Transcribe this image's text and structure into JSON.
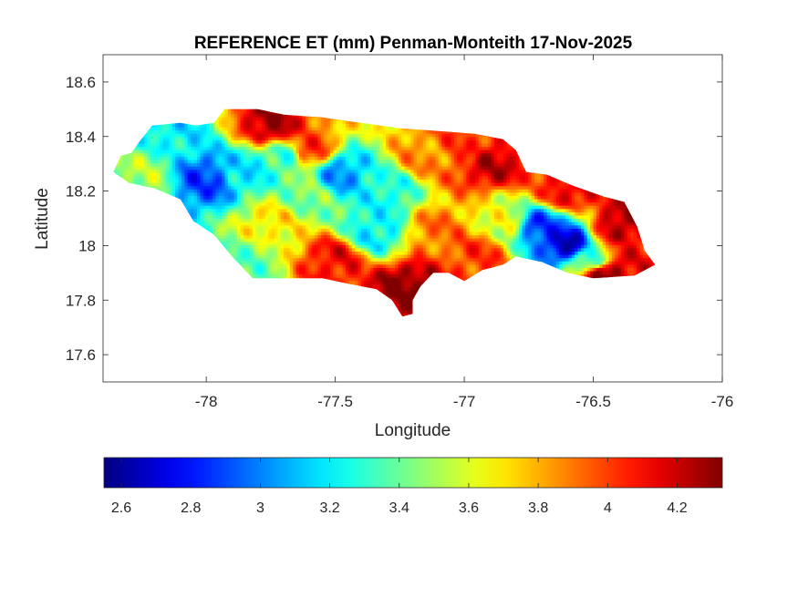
{
  "chart_data": {
    "type": "heatmap",
    "title": "REFERENCE ET (mm) Penman-Monteith 17-Nov-2025",
    "xlabel": "Longitude",
    "ylabel": "Latitude",
    "xlim": [
      -78.4,
      -76
    ],
    "ylim": [
      17.5,
      18.7
    ],
    "xticks": [
      -78,
      -77.5,
      -77,
      -76.5,
      -76
    ],
    "yticks": [
      17.6,
      17.8,
      18,
      18.2,
      18.4,
      18.6
    ],
    "grid": false,
    "colormap": "jet",
    "colorbar": {
      "orientation": "horizontal",
      "placement": "below",
      "clim": [
        2.55,
        4.33
      ],
      "ticks": [
        2.6,
        2.8,
        3,
        3.2,
        3.4,
        3.6,
        3.8,
        4,
        4.2
      ]
    },
    "outline": [
      [
        -78.36,
        18.27
      ],
      [
        -78.33,
        18.33
      ],
      [
        -78.29,
        18.34
      ],
      [
        -78.26,
        18.38
      ],
      [
        -78.21,
        18.44
      ],
      [
        -78.1,
        18.45
      ],
      [
        -78.04,
        18.44
      ],
      [
        -77.97,
        18.45
      ],
      [
        -77.93,
        18.5
      ],
      [
        -77.8,
        18.5
      ],
      [
        -77.7,
        18.48
      ],
      [
        -77.55,
        18.47
      ],
      [
        -77.4,
        18.45
      ],
      [
        -77.25,
        18.43
      ],
      [
        -77.1,
        18.42
      ],
      [
        -76.96,
        18.41
      ],
      [
        -76.85,
        18.39
      ],
      [
        -76.8,
        18.35
      ],
      [
        -76.76,
        18.27
      ],
      [
        -76.68,
        18.26
      ],
      [
        -76.58,
        18.22
      ],
      [
        -76.46,
        18.18
      ],
      [
        -76.38,
        18.16
      ],
      [
        -76.33,
        18.07
      ],
      [
        -76.3,
        17.98
      ],
      [
        -76.26,
        17.93
      ],
      [
        -76.34,
        17.89
      ],
      [
        -76.5,
        17.88
      ],
      [
        -76.6,
        17.9
      ],
      [
        -76.7,
        17.94
      ],
      [
        -76.8,
        17.96
      ],
      [
        -76.85,
        17.93
      ],
      [
        -76.93,
        17.91
      ],
      [
        -77.0,
        17.87
      ],
      [
        -77.06,
        17.9
      ],
      [
        -77.12,
        17.9
      ],
      [
        -77.17,
        17.85
      ],
      [
        -77.2,
        17.8
      ],
      [
        -77.2,
        17.75
      ],
      [
        -77.24,
        17.74
      ],
      [
        -77.28,
        17.8
      ],
      [
        -77.34,
        17.84
      ],
      [
        -77.45,
        17.86
      ],
      [
        -77.55,
        17.88
      ],
      [
        -77.7,
        17.88
      ],
      [
        -77.82,
        17.88
      ],
      [
        -77.9,
        17.96
      ],
      [
        -77.97,
        18.04
      ],
      [
        -78.05,
        18.09
      ],
      [
        -78.1,
        18.17
      ],
      [
        -78.2,
        18.21
      ],
      [
        -78.3,
        18.23
      ]
    ],
    "anchors": [
      {
        "lon": -78.25,
        "lat": 18.27,
        "value": 3.5
      },
      {
        "lon": -78.12,
        "lat": 18.4,
        "value": 3.2
      },
      {
        "lon": -78.0,
        "lat": 18.25,
        "value": 2.9
      },
      {
        "lon": -77.85,
        "lat": 18.28,
        "value": 3.2
      },
      {
        "lon": -77.75,
        "lat": 18.44,
        "value": 4.25
      },
      {
        "lon": -77.6,
        "lat": 18.35,
        "value": 4.0
      },
      {
        "lon": -77.48,
        "lat": 18.27,
        "value": 3.05
      },
      {
        "lon": -77.3,
        "lat": 18.2,
        "value": 3.25
      },
      {
        "lon": -77.15,
        "lat": 18.33,
        "value": 3.85
      },
      {
        "lon": -77.0,
        "lat": 18.35,
        "value": 4.0
      },
      {
        "lon": -76.9,
        "lat": 18.3,
        "value": 4.2
      },
      {
        "lon": -77.62,
        "lat": 18.18,
        "value": 3.45
      },
      {
        "lon": -77.75,
        "lat": 18.08,
        "value": 3.7
      },
      {
        "lon": -77.85,
        "lat": 17.95,
        "value": 3.4
      },
      {
        "lon": -77.5,
        "lat": 17.95,
        "value": 4.1
      },
      {
        "lon": -77.35,
        "lat": 18.05,
        "value": 3.2
      },
      {
        "lon": -77.22,
        "lat": 17.85,
        "value": 4.3
      },
      {
        "lon": -77.1,
        "lat": 18.05,
        "value": 3.9
      },
      {
        "lon": -76.95,
        "lat": 17.96,
        "value": 4.0
      },
      {
        "lon": -76.85,
        "lat": 18.1,
        "value": 3.6
      },
      {
        "lon": -76.7,
        "lat": 18.07,
        "value": 2.9
      },
      {
        "lon": -76.6,
        "lat": 18.01,
        "value": 2.7
      },
      {
        "lon": -76.5,
        "lat": 17.95,
        "value": 3.4
      },
      {
        "lon": -76.4,
        "lat": 18.07,
        "value": 4.25
      },
      {
        "lon": -76.45,
        "lat": 17.9,
        "value": 4.33
      },
      {
        "lon": -76.35,
        "lat": 17.95,
        "value": 4.1
      },
      {
        "lon": -76.6,
        "lat": 18.2,
        "value": 4.15
      },
      {
        "lon": -77.7,
        "lat": 18.32,
        "value": 3.3
      }
    ]
  }
}
